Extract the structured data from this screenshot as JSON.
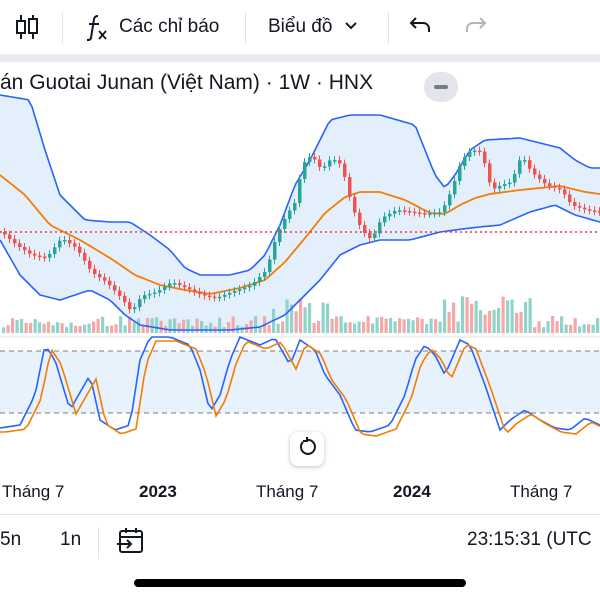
{
  "toolbar": {
    "indicators_label": "Các chỉ báo",
    "chart_type_label": "Biểu đồ"
  },
  "chart": {
    "title": "án Guotai Junan (Việt Nam) · 1W · HNX",
    "colors": {
      "up": "#26a69a",
      "down": "#ef5350",
      "bollinger_line": "#2962ff",
      "bollinger_fill": "#e3f0fb",
      "basis_line": "#f57c00",
      "price_line": "#f23645",
      "stoch_k": "#2962ff",
      "stoch_d": "#f57c00",
      "stoch_band_fill": "#e8f2fc"
    }
  },
  "time_axis": {
    "labels": [
      "Tháng 7",
      "2023",
      "Tháng 7",
      "2024",
      "Tháng 7"
    ]
  },
  "bottom_bar": {
    "range_5n": "5n",
    "range_1n": "1n",
    "clock": "23:15:31 (UTC"
  }
}
